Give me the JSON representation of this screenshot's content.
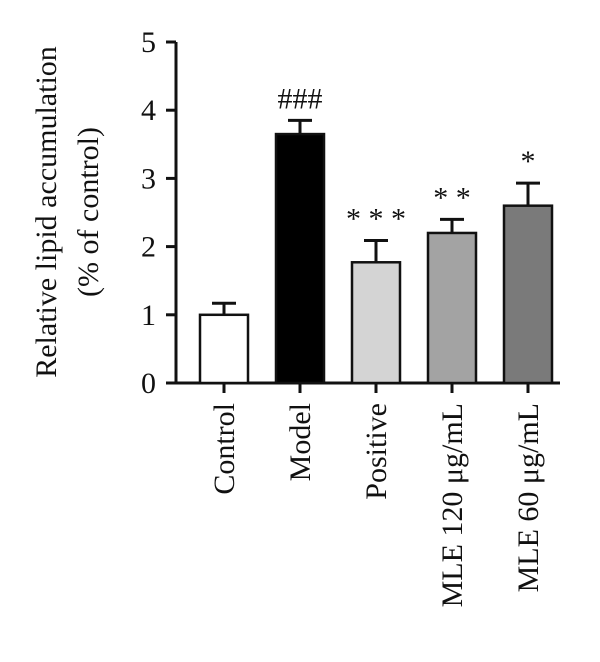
{
  "chart_data": {
    "type": "bar",
    "categories": [
      "Control",
      "Model",
      "Positive",
      "MLE 120 μg/mL",
      "MLE 60 μg/mL"
    ],
    "values": [
      1.0,
      3.65,
      1.77,
      2.2,
      2.6
    ],
    "errors": [
      0.17,
      0.2,
      0.32,
      0.2,
      0.33
    ],
    "annotations": [
      "",
      "###",
      "* * *",
      "* *",
      "*"
    ],
    "bar_fills": [
      "#ffffff",
      "#000000",
      "#d4d4d4",
      "#a3a3a3",
      "#7a7a7a"
    ],
    "ylabel_line1": "Relative lipid accumulation",
    "ylabel_line2": "(% of control)",
    "xlabel": "",
    "ylim": [
      0,
      5
    ],
    "yticks": [
      0,
      1,
      2,
      3,
      4,
      5
    ],
    "grid": false,
    "legend": "none"
  }
}
